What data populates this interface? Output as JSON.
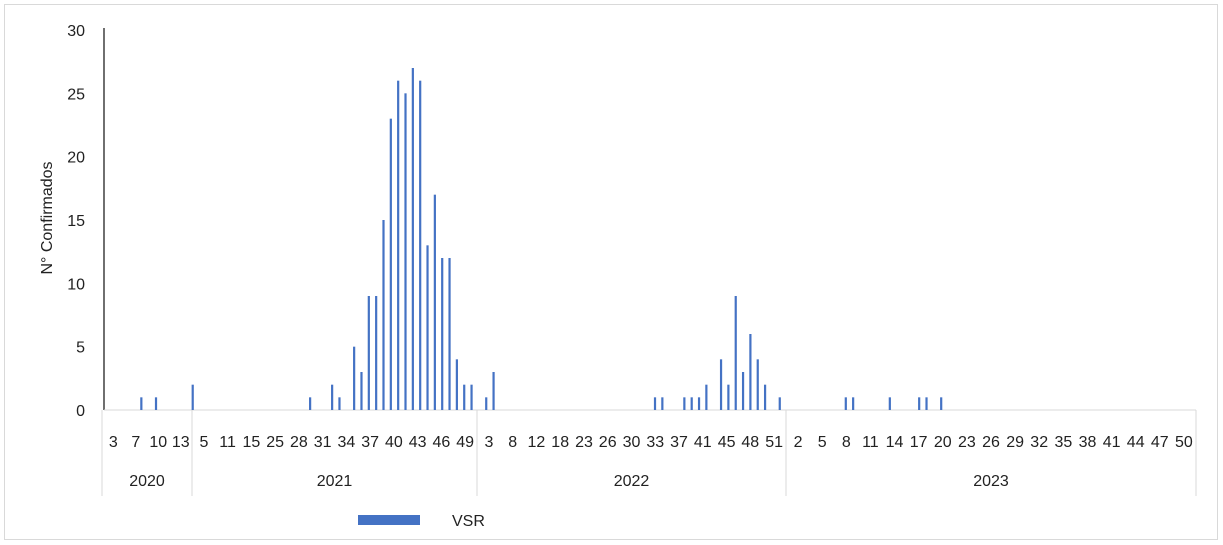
{
  "chart_data": {
    "type": "bar",
    "ylabel": "N° Confirmados",
    "ylim": [
      0,
      30
    ],
    "yticks": [
      "0",
      "5",
      "10",
      "15",
      "20",
      "25",
      "30"
    ],
    "grid": false,
    "legend_position": "bottom",
    "series_color": "#4472c4",
    "series": [
      {
        "name": "VSR",
        "values": [
          0,
          1,
          0,
          1,
          0,
          0,
          0,
          0,
          2,
          0,
          0,
          0,
          0,
          0,
          0,
          0,
          0,
          0,
          0,
          0,
          0,
          0,
          0,
          0,
          1,
          0,
          0,
          2,
          1,
          0,
          5,
          3,
          9,
          9,
          15,
          23,
          26,
          25,
          27,
          26,
          13,
          17,
          12,
          12,
          4,
          2,
          2,
          0,
          1,
          3,
          0,
          0,
          0,
          0,
          0,
          0,
          0,
          0,
          0,
          0,
          0,
          0,
          0,
          0,
          0,
          0,
          0,
          0,
          0,
          0,
          0,
          1,
          1,
          0,
          0,
          1,
          1,
          1,
          2,
          0,
          4,
          2,
          9,
          3,
          6,
          4,
          2,
          0,
          1,
          0,
          0,
          0,
          0,
          0,
          0,
          0,
          0,
          1,
          1,
          0,
          0,
          0,
          0,
          1,
          0,
          0,
          0,
          1,
          1,
          0,
          1,
          0,
          0,
          0,
          0,
          0,
          0,
          0,
          0,
          0,
          0,
          0,
          0,
          0,
          0,
          0,
          0,
          0,
          0,
          0,
          0,
          0,
          0,
          0,
          0,
          0,
          0,
          0,
          0,
          0
        ]
      }
    ],
    "category_levels": [
      {
        "level": "week",
        "labels": [
          "3",
          "7",
          "10",
          "13",
          "5",
          "11",
          "15",
          "25",
          "28",
          "31",
          "34",
          "37",
          "40",
          "43",
          "46",
          "49",
          "3",
          "8",
          "12",
          "18",
          "23",
          "26",
          "30",
          "33",
          "37",
          "41",
          "45",
          "48",
          "51",
          "2",
          "5",
          "8",
          "11",
          "14",
          "17",
          "20",
          "23",
          "26",
          "29",
          "32",
          "35",
          "38",
          "41",
          "44",
          "47",
          "50"
        ]
      },
      {
        "level": "year",
        "labels": [
          "2020",
          "2021",
          "2022",
          "2023"
        ]
      }
    ]
  }
}
